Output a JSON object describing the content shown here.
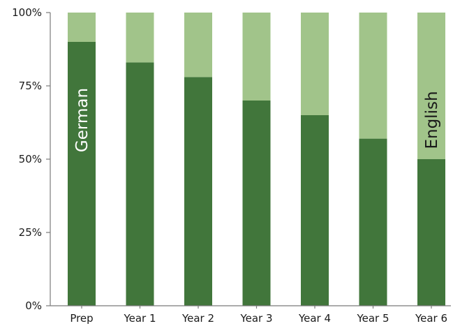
{
  "chart_data": {
    "type": "bar",
    "stacked": true,
    "categories": [
      "Prep",
      "Year 1",
      "Year 2",
      "Year 3",
      "Year 4",
      "Year 5",
      "Year 6"
    ],
    "series": [
      {
        "name": "German",
        "values": [
          90,
          83,
          78,
          70,
          65,
          57,
          50
        ],
        "color": "#41763b"
      },
      {
        "name": "English",
        "values": [
          10,
          17,
          22,
          30,
          35,
          43,
          50
        ],
        "color": "#a1c48a"
      }
    ],
    "y_ticks": [
      "0%",
      "25%",
      "50%",
      "75%",
      "100%"
    ],
    "ylim": [
      0,
      100
    ],
    "title": "",
    "xlabel": "",
    "ylabel": "",
    "grid": false,
    "legend": "none",
    "series_labels_in_bars": true
  }
}
